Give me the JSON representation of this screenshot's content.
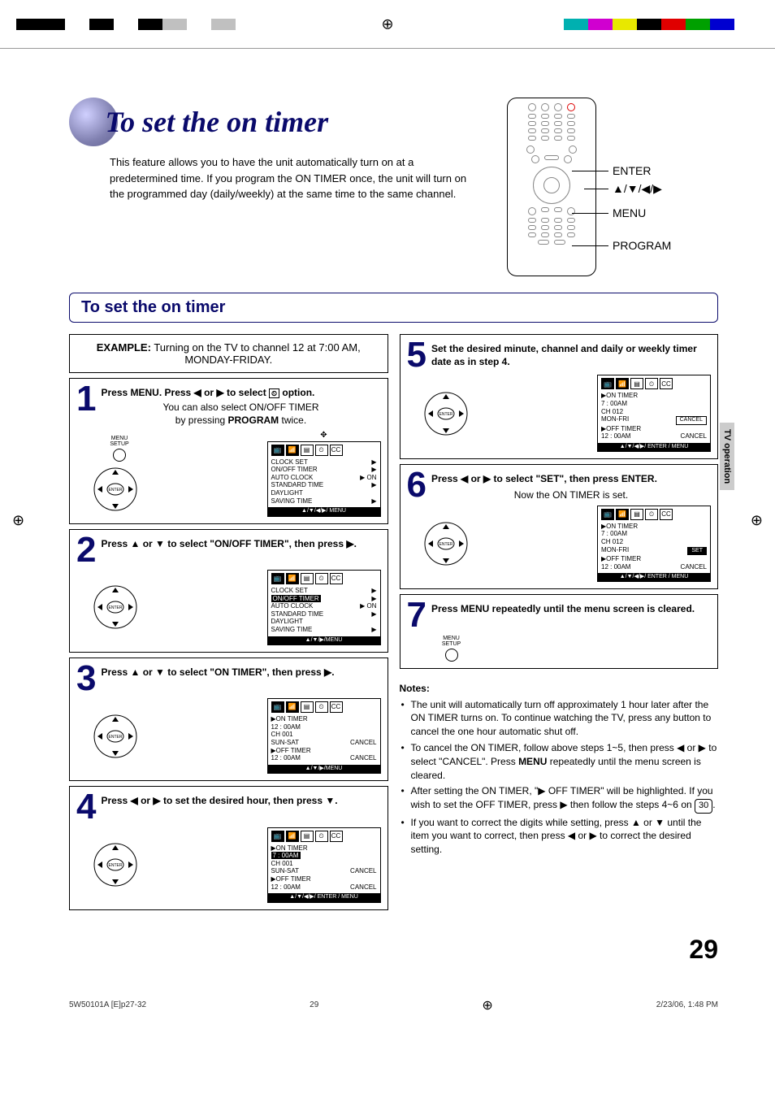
{
  "colorbar_left": [
    "#000000",
    "#000000",
    "#ffffff",
    "#000000",
    "#ffffff",
    "#000000",
    "#c0c0c0",
    "#ffffff",
    "#c0c0c0"
  ],
  "colorbar_right": [
    "#00b0b0",
    "#d000d0",
    "#e8e800",
    "#000000",
    "#e00000",
    "#00a000",
    "#0000d0",
    "#ffffff"
  ],
  "header": {
    "title": "To set the on timer",
    "intro": "This feature allows you to have the unit automatically turn on at a predetermined time. If you program the ON TIMER once, the unit will turn on the programmed day (daily/weekly) at the same time to the same channel."
  },
  "remote_labels": {
    "enter": "ENTER",
    "arrows": "▲/▼/◀/▶",
    "menu": "MENU",
    "program": "PROGRAM"
  },
  "section_title": "To set the on timer",
  "example": {
    "label": "EXAMPLE:",
    "text": "Turning on the TV to channel 12 at 7:00 AM,  MONDAY-FRIDAY."
  },
  "steps": {
    "s1": {
      "num": "1",
      "title_pre": "Press MENU. Press ◀ or ▶ to select ",
      "title_post": " option.",
      "sub1": "You can also select ON/OFF TIMER",
      "sub2_pre": "by pressing ",
      "sub2_bold": "PROGRAM",
      "sub2_post": " twice.",
      "osd": {
        "lines": [
          [
            "CLOCK SET",
            "▶"
          ],
          [
            "ON/OFF TIMER",
            "▶"
          ],
          [
            "AUTO CLOCK",
            "▶ ON"
          ],
          [
            "STANDARD TIME",
            "▶"
          ],
          [
            "DAYLIGHT",
            ""
          ],
          [
            "  SAVING TIME",
            "▶"
          ]
        ],
        "foot": "▲/▼/◀/▶/ MENU"
      }
    },
    "s2": {
      "num": "2",
      "title": "Press ▲ or ▼ to select \"ON/OFF TIMER\", then press ▶.",
      "osd": {
        "lines": [
          [
            "CLOCK SET",
            "▶"
          ],
          [
            "ON/OFF TIMER_hl",
            "▶"
          ],
          [
            "AUTO CLOCK",
            "▶ ON"
          ],
          [
            "STANDARD TIME",
            "▶"
          ],
          [
            "DAYLIGHT",
            ""
          ],
          [
            "  SAVING TIME",
            "▶"
          ]
        ],
        "foot": "▲/▼/▶/MENU"
      }
    },
    "s3": {
      "num": "3",
      "title": "Press ▲ or ▼ to select \"ON TIMER\", then press ▶.",
      "osd": {
        "lines": [
          [
            "▶ON TIMER",
            ""
          ],
          [
            "    12 : 00AM",
            ""
          ],
          [
            "    CH 001",
            ""
          ],
          [
            "    SUN-SAT",
            "CANCEL"
          ],
          [
            "▶OFF TIMER",
            ""
          ],
          [
            "    12 : 00AM",
            "CANCEL"
          ]
        ],
        "foot": "▲/▼/▶/MENU"
      }
    },
    "s4": {
      "num": "4",
      "title": "Press ◀ or ▶ to set the desired hour, then press ▼.",
      "osd": {
        "lines": [
          [
            "▶ON TIMER",
            ""
          ],
          [
            "     7 : 00AM_hl",
            ""
          ],
          [
            "    CH 001",
            ""
          ],
          [
            "    SUN-SAT",
            "CANCEL"
          ],
          [
            "▶OFF TIMER",
            ""
          ],
          [
            "    12 : 00AM",
            "CANCEL"
          ]
        ],
        "foot": "▲/▼/◀/▶/ ENTER / MENU"
      }
    },
    "s5": {
      "num": "5",
      "title": "Set the desired minute, channel and daily or weekly timer date as in step 4.",
      "osd": {
        "lines": [
          [
            "▶ON TIMER",
            ""
          ],
          [
            "     7 : 00AM",
            ""
          ],
          [
            "    CH 012",
            ""
          ],
          [
            "    MON-FRI",
            "CANCEL_box"
          ],
          [
            "▶OFF TIMER",
            ""
          ],
          [
            "    12 : 00AM",
            "CANCEL"
          ]
        ],
        "foot": "▲/▼/◀/▶/ ENTER / MENU"
      }
    },
    "s6": {
      "num": "6",
      "title": "Press ◀ or ▶ to select \"SET\", then press ENTER.",
      "sub": "Now the ON TIMER is set.",
      "osd": {
        "lines": [
          [
            "▶ON TIMER",
            ""
          ],
          [
            "     7 : 00AM",
            ""
          ],
          [
            "    CH 012",
            ""
          ],
          [
            "    MON-FRI",
            "SET_set"
          ],
          [
            "▶OFF TIMER",
            ""
          ],
          [
            "    12 : 00AM",
            "CANCEL"
          ]
        ],
        "foot": "▲/▼/◀/▶/ ENTER / MENU"
      }
    },
    "s7": {
      "num": "7",
      "title": "Press MENU repeatedly until the menu screen is cleared.",
      "menu_label": "MENU\nSETUP"
    }
  },
  "notes": {
    "title": "Notes:",
    "n1": "The unit will automatically turn off approximately 1 hour later after the ON TIMER turns on. To continue watching the TV, press any button to cancel the one hour automatic shut off.",
    "n2_a": "To cancel the ON TIMER, follow above steps 1~5, then press ◀ or ▶ to select \"CANCEL\". Press ",
    "n2_b": "MENU",
    "n2_c": " repeatedly until the menu screen is cleared.",
    "n3_a": "After setting the ON TIMER, \"▶ OFF TIMER\" will be highlighted. If you wish to set the OFF TIMER, press  ▶ then follow the steps 4~6 on ",
    "n3_page": "30",
    "n3_b": ".",
    "n4": "If you want to correct the digits while setting, press ▲ or ▼ until the item you want to correct, then press ◀ or ▶ to correct the desired setting."
  },
  "side_tab": "TV operation",
  "page_number": "29",
  "footer": {
    "left": "5W50101A [E]p27-32",
    "mid": "29",
    "right": "2/23/06, 1:48 PM"
  }
}
